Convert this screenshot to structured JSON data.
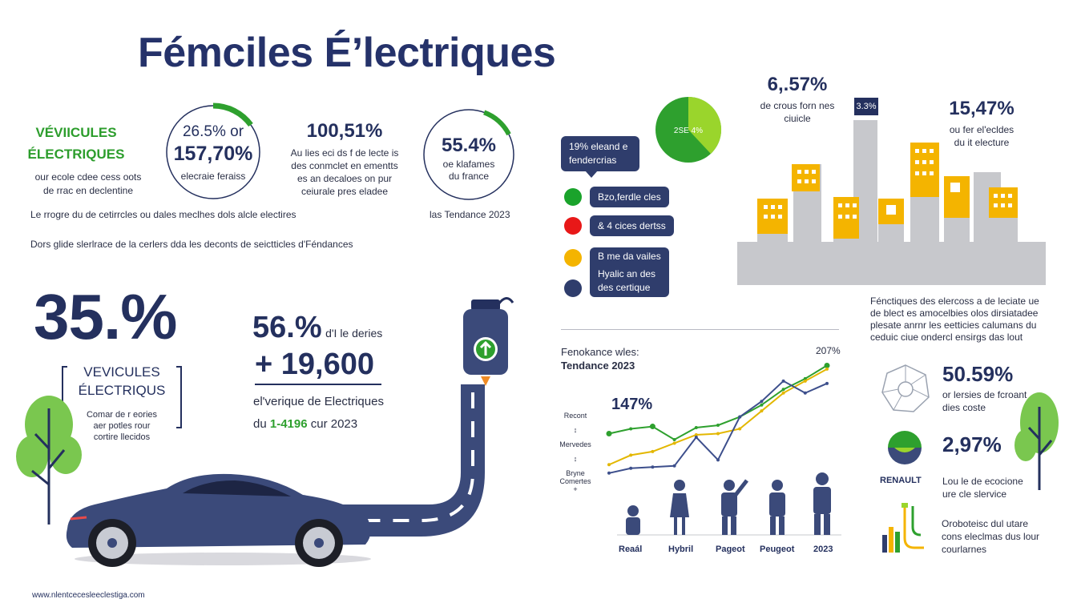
{
  "title": "Fémciles É’lectriques",
  "left_top": {
    "heading_line1": "VÉVIICULES",
    "heading_line2": "ÉLECTRIQUES",
    "desc_line1": "our ecole cdee cess oots",
    "desc_line2": "de rrac en declentine",
    "ring1": {
      "line1": "26.5% or",
      "line2": "157,70%",
      "label": "elecraie feraiss",
      "progress": 0.15
    },
    "stat2": {
      "value": "100,51%",
      "line1": "Au lies eci ds f de lecte is",
      "line2": "des conmclet en ementts",
      "line3": "es an decaloes on pur",
      "line4": "ceiurale pres eladee"
    },
    "ring3": {
      "value": "55.4%",
      "line1": "oe klafames",
      "line2": "du france",
      "progress": 0.12
    },
    "caption1": "Le rrogre du de cetirrcles ou dales meclhes dols alcle electires",
    "caption1_right": "las Tendance 2023",
    "caption2": "Dors glide slerlrace de la cerlers dda les deconts de seictticles d'Féndances"
  },
  "left_bottom": {
    "big_pct": "35.%",
    "box_line1": "VEVICULES",
    "box_line2": "ÉLECTRIQUS",
    "box_desc1": "Comar de r eories",
    "box_desc2": "aer potles rour",
    "box_desc3": "cortire llecidos",
    "stat_pct": "56.%",
    "stat_pct_label": "d'I le deries",
    "stat_big": "+ 19,600",
    "stat_line1": "el'verique de Electriques",
    "stat_line2_prefix": "du ",
    "stat_line2_green": "1-4196",
    "stat_line2_suffix": " cur 2023",
    "url": "www.nlentcecesleeclestiga.com"
  },
  "legend": {
    "pie_label": "2SE 4%",
    "tooltip_line1": "19% eleand e",
    "tooltip_line2": "fendercrias",
    "items": [
      {
        "label": "Bzo,ferdle cles",
        "color": "#1aa32b"
      },
      {
        "label": "& 4 cices dertss",
        "color": "#e81818"
      },
      {
        "label": "B me da vailes",
        "color": "#f4b400"
      },
      {
        "label": "Hyalic an des",
        "label2": "des certique",
        "color": "#2f3d6c"
      }
    ]
  },
  "bar_panel": {
    "stat_a_value": "6,.57%",
    "stat_a_line1": "de crous forn nes",
    "stat_a_line2": "ciuicle",
    "tag": "3.3%",
    "stat_b_value": "15,47%",
    "stat_b_line1": "ou fer el'ecldes",
    "stat_b_line2": "du it electure",
    "desc_line1": "Fénctiques des elercoss a de leciate ue",
    "desc_line2": "de blect es amocelbies olos dirsiatadee",
    "desc_line3": "plesate anrnr les eetticies calumans du",
    "desc_line4": "ceduic ciue ondercl ensirgs das lout"
  },
  "line_chart": {
    "title1": "Fenokance wles:",
    "title2": "Tendance 2023",
    "top_right": "207%",
    "value_label": "147%",
    "side_labels": [
      "Recont",
      "Mervedes",
      "Bryne",
      "Comertes"
    ],
    "categories": [
      "Reaál",
      "Hybril",
      "Pageot",
      "Peugeot",
      "2023"
    ]
  },
  "chart_data": {
    "type": "line",
    "x": [
      1,
      2,
      3,
      4,
      5,
      6,
      7,
      8,
      9,
      10,
      11
    ],
    "series": [
      {
        "color": "#2ea02e",
        "values": [
          146,
          150,
          152,
          141,
          151,
          153,
          160,
          170,
          183,
          192,
          203
        ]
      },
      {
        "color": "#e3b700",
        "values": [
          120,
          128,
          131,
          138,
          145,
          146,
          150,
          165,
          180,
          190,
          200
        ]
      },
      {
        "color": "#3d4f8c",
        "values": [
          113,
          117,
          118,
          119,
          143,
          124,
          160,
          173,
          190,
          180,
          188
        ]
      }
    ],
    "ylim": [
      80,
      210
    ]
  },
  "right_bottom": {
    "stat1_value": "50.59%",
    "stat1_line1": "or lersies de fcroant",
    "stat1_line2": "dies coste",
    "brand": "RENAULT",
    "stat2_value": "2,97%",
    "stat2_line1": "Lou le de ecocione",
    "stat2_line2": "ure cle slervice",
    "desc_line1": "Oroboteisc dul utare",
    "desc_line2": "cons eleclmas dus lour",
    "desc_line3": "courlarnes"
  },
  "colors": {
    "navy": "#24305e",
    "green": "#2c9d2c",
    "yellow": "#f4b400",
    "gray": "#c7c8cc",
    "red": "#e81818"
  }
}
